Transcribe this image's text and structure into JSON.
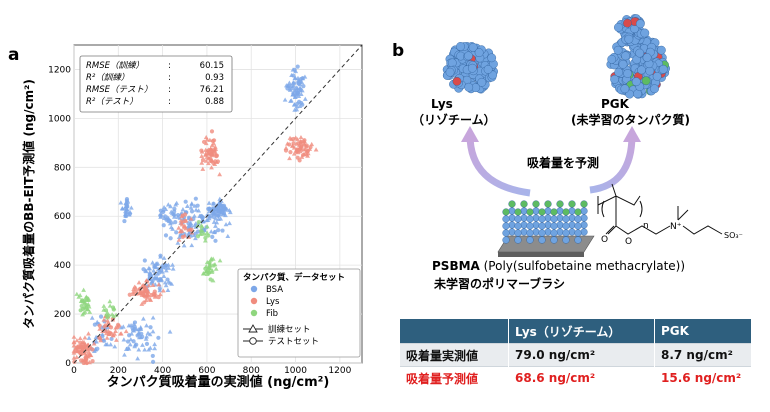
{
  "panel_a": {
    "label": "a",
    "stats": [
      {
        "name": "RMSE（訓練）",
        "value": "60.15"
      },
      {
        "name": "R²（訓練）",
        "value": "0.93"
      },
      {
        "name": "RMSE（テスト）",
        "value": "76.21"
      },
      {
        "name": "R²（テスト）",
        "value": "0.88"
      }
    ],
    "legend_title": "タンパク質、データセット",
    "legend_items": [
      {
        "label": "BSA",
        "color": "#7da7e8"
      },
      {
        "label": "Lys",
        "color": "#f08c7e"
      },
      {
        "label": "Fib",
        "color": "#8fd67e"
      }
    ],
    "legend_markers": [
      {
        "label": "訓練セット",
        "marker": "triangle"
      },
      {
        "label": "テストセット",
        "marker": "circle"
      }
    ]
  },
  "panel_b": {
    "label": "b",
    "lys_title": "Lys",
    "lys_subtitle": "（リゾチーム）",
    "pgk_title": "PGK",
    "pgk_subtitle": "(未学習のタンパク質)",
    "predict_label": "吸着量を予測",
    "psbma_bold": "PSBMA",
    "psbma_rest": " (Poly(sulfobetaine methacrylate))",
    "brush_label": "未学習のポリマーブラシ",
    "chem_n": "n",
    "chem_n_plus": "N⁺",
    "chem_so3": "SO₃⁻",
    "chem_o": "O"
  },
  "table": {
    "headers": [
      "",
      "Lys（リゾチーム）",
      "PGK"
    ],
    "rows": [
      {
        "label": "吸着量実測値",
        "lys": "79.0 ng/cm²",
        "pgk": "8.7 ng/cm²"
      },
      {
        "label": "吸着量予測値",
        "lys": "68.6 ng/cm²",
        "pgk": "15.6 ng/cm²"
      }
    ]
  },
  "chart_data": {
    "type": "scatter",
    "title": "",
    "xlabel": "タンパク質吸着量の実測値 (ng/cm²)",
    "ylabel": "タンパク質吸着量のBB-EIT予測値 (ng/cm²)",
    "xlim": [
      0,
      1300
    ],
    "ylim": [
      0,
      1300
    ],
    "xticks": [
      "0",
      "200",
      "400",
      "600",
      "800",
      "1000",
      "1200"
    ],
    "yticks": [
      "0",
      "200",
      "400",
      "600",
      "800",
      "1000",
      "1200"
    ],
    "grid": true,
    "reference_line": "y = x",
    "series": [
      {
        "name": "BSA",
        "color": "#7da7e8",
        "clusters": [
          {
            "x": 1000,
            "y": 1120,
            "sx": 35,
            "sy": 70,
            "n": 70
          },
          {
            "x": 240,
            "y": 630,
            "sx": 15,
            "sy": 40,
            "n": 30
          },
          {
            "x": 300,
            "y": 100,
            "sx": 90,
            "sy": 70,
            "n": 60
          },
          {
            "x": 550,
            "y": 570,
            "sx": 120,
            "sy": 70,
            "n": 120
          },
          {
            "x": 650,
            "y": 625,
            "sx": 40,
            "sy": 30,
            "n": 60
          },
          {
            "x": 380,
            "y": 360,
            "sx": 55,
            "sy": 60,
            "n": 70
          },
          {
            "x": 130,
            "y": 120,
            "sx": 50,
            "sy": 60,
            "n": 30
          },
          {
            "x": 420,
            "y": 610,
            "sx": 40,
            "sy": 20,
            "n": 20
          }
        ]
      },
      {
        "name": "Lys",
        "color": "#f08c7e",
        "clusters": [
          {
            "x": 40,
            "y": 50,
            "sx": 40,
            "sy": 50,
            "n": 80
          },
          {
            "x": 1020,
            "y": 880,
            "sx": 50,
            "sy": 35,
            "n": 60
          },
          {
            "x": 620,
            "y": 850,
            "sx": 35,
            "sy": 55,
            "n": 60
          },
          {
            "x": 320,
            "y": 290,
            "sx": 50,
            "sy": 35,
            "n": 60
          },
          {
            "x": 170,
            "y": 150,
            "sx": 45,
            "sy": 40,
            "n": 40
          },
          {
            "x": 500,
            "y": 560,
            "sx": 30,
            "sy": 60,
            "n": 25
          }
        ]
      },
      {
        "name": "Fib",
        "color": "#8fd67e",
        "clusters": [
          {
            "x": 50,
            "y": 240,
            "sx": 25,
            "sy": 40,
            "n": 30
          },
          {
            "x": 610,
            "y": 380,
            "sx": 30,
            "sy": 45,
            "n": 30
          },
          {
            "x": 580,
            "y": 520,
            "sx": 20,
            "sy": 50,
            "n": 15
          },
          {
            "x": 160,
            "y": 220,
            "sx": 40,
            "sy": 40,
            "n": 15
          }
        ]
      }
    ]
  }
}
